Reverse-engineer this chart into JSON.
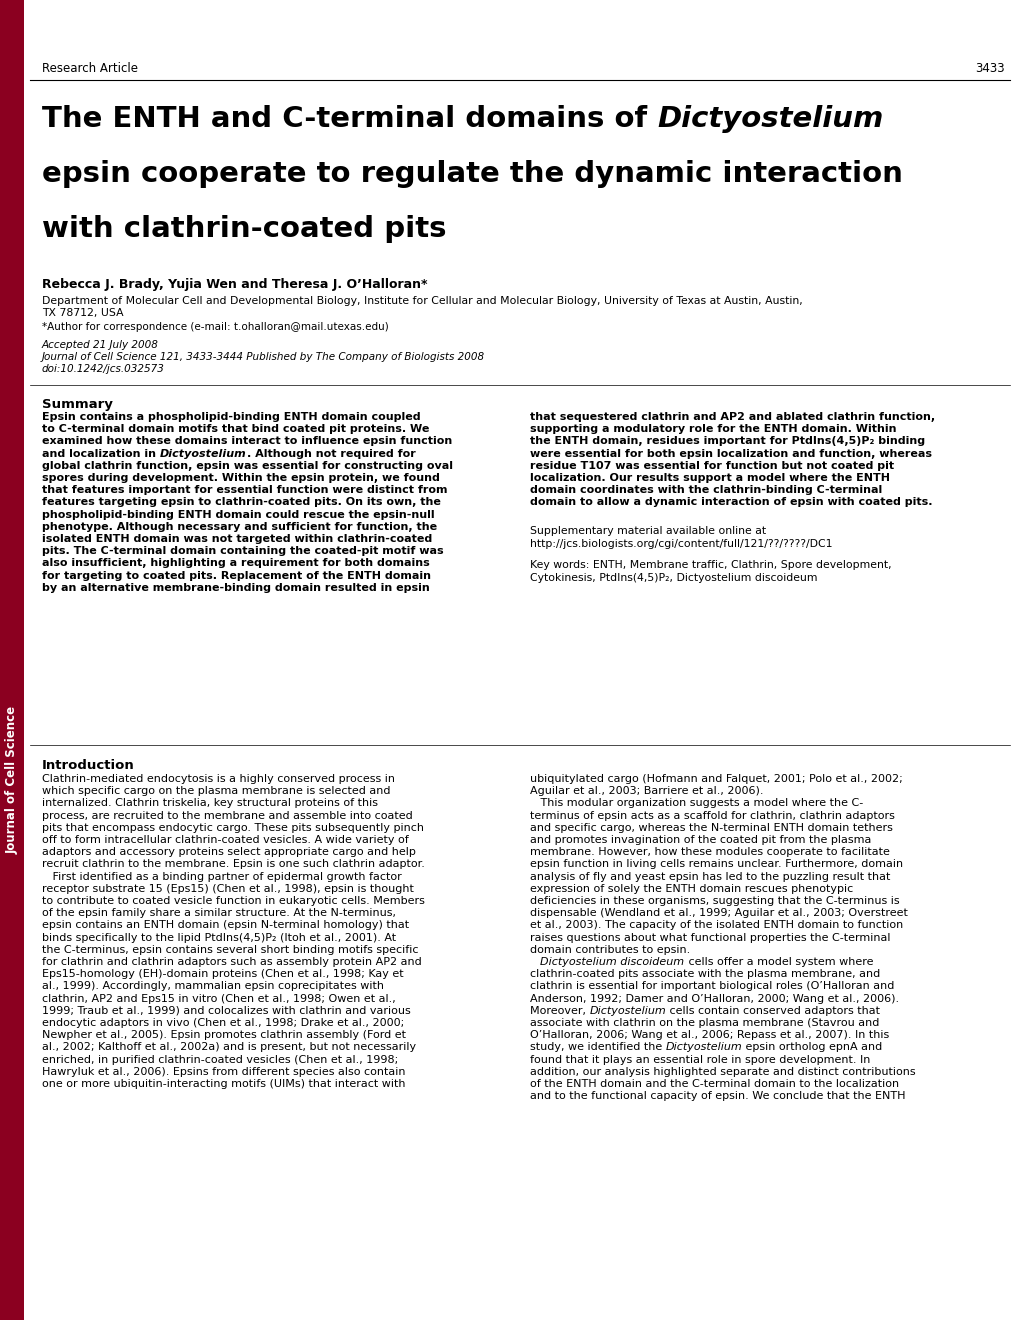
{
  "bg_color": "#ffffff",
  "sidebar_color": "#8B0020",
  "page_number": "3433",
  "section_label": "Research Article",
  "journal_sidebar_text": "Journal of Cell Science",
  "authors": "Rebecca J. Brady, Yujia Wen and Theresa J. O’Halloran*",
  "affiliation_line1": "Department of Molecular Cell and Developmental Biology, Institute for Cellular and Molecular Biology, University of Texas at Austin, Austin,",
  "affiliation_line2": "TX 78712, USA",
  "correspondence": "*Author for correspondence (e-mail: t.ohalloran@mail.utexas.edu)",
  "accepted": "Accepted 21 July 2008",
  "journal_ref": "Journal of Cell Science 121, 3433-3444 Published by The Company of Biologists 2008",
  "doi": "doi:10.1242/jcs.032573",
  "summary_heading": "Summary",
  "suppl_text": "Supplementary material available online at",
  "suppl_url": "http://jcs.biologists.org/cgi/content/full/121/??/????/DC1",
  "keywords": "Key words: ENTH, Membrane traffic, Clathrin, Spore development,\nCytokinesis, PtdIns(4,5)P₂, Dictyostelium discoideum",
  "intro_heading": "Introduction",
  "summary_col1_lines": [
    "Epsin contains a phospholipid-binding ENTH domain coupled",
    "to C-terminal domain motifs that bind coated pit proteins. We",
    "examined how these domains interact to influence epsin function",
    "and localization in |Dictyostelium|. Although not required for",
    "global clathrin function, epsin was essential for constructing oval",
    "spores during development. Within the epsin protein, we found",
    "that features important for essential function were distinct from",
    "features targeting epsin to clathrin-coated pits. On its own, the",
    "phospholipid-binding ENTH domain could rescue the epsin-null",
    "phenotype. Although necessary and sufficient for function, the",
    "isolated ENTH domain was not targeted within clathrin-coated",
    "pits. The C-terminal domain containing the coated-pit motif was",
    "also insufficient, highlighting a requirement for both domains",
    "for targeting to coated pits. Replacement of the ENTH domain",
    "by an alternative membrane-binding domain resulted in epsin"
  ],
  "summary_col2_lines": [
    "that sequestered clathrin and AP2 and ablated clathrin function,",
    "supporting a modulatory role for the ENTH domain. Within",
    "the ENTH domain, residues important for PtdIns(4,5)P₂ binding",
    "were essential for both epsin localization and function, whereas",
    "residue T107 was essential for function but not coated pit",
    "localization. Our results support a model where the ENTH",
    "domain coordinates with the clathrin-binding C-terminal",
    "domain to allow a dynamic interaction of epsin with coated pits."
  ],
  "intro_col1_lines": [
    "Clathrin-mediated endocytosis is a highly conserved process in",
    "which specific cargo on the plasma membrane is selected and",
    "internalized. Clathrin triskelia, key structural proteins of this",
    "process, are recruited to the membrane and assemble into coated",
    "pits that encompass endocytic cargo. These pits subsequently pinch",
    "off to form intracellular clathrin-coated vesicles. A wide variety of",
    "adaptors and accessory proteins select appropriate cargo and help",
    "recruit clathrin to the membrane. Epsin is one such clathrin adaptor.",
    "   First identified as a binding partner of epidermal growth factor",
    "receptor substrate 15 (Eps15) (Chen et al., 1998), epsin is thought",
    "to contribute to coated vesicle function in eukaryotic cells. Members",
    "of the epsin family share a similar structure. At the N-terminus,",
    "epsin contains an ENTH domain (epsin N-terminal homology) that",
    "binds specifically to the lipid PtdIns(4,5)P₂ (Itoh et al., 2001). At",
    "the C-terminus, epsin contains several short binding motifs specific",
    "for clathrin and clathrin adaptors such as assembly protein AP2 and",
    "Eps15-homology (EH)-domain proteins (Chen et al., 1998; Kay et",
    "al., 1999). Accordingly, mammalian epsin coprecipitates with",
    "clathrin, AP2 and Eps15 in vitro (Chen et al., 1998; Owen et al.,",
    "1999; Traub et al., 1999) and colocalizes with clathrin and various",
    "endocytic adaptors in vivo (Chen et al., 1998; Drake et al., 2000;",
    "Newpher et al., 2005). Epsin promotes clathrin assembly (Ford et",
    "al., 2002; Kalthoff et al., 2002a) and is present, but not necessarily",
    "enriched, in purified clathrin-coated vesicles (Chen et al., 1998;",
    "Hawryluk et al., 2006). Epsins from different species also contain",
    "one or more ubiquitin-interacting motifs (UIMs) that interact with"
  ],
  "intro_col2_lines": [
    "ubiquitylated cargo (Hofmann and Falquet, 2001; Polo et al., 2002;",
    "Aguilar et al., 2003; Barriere et al., 2006).",
    "   This modular organization suggests a model where the C-",
    "terminus of epsin acts as a scaffold for clathrin, clathrin adaptors",
    "and specific cargo, whereas the N-terminal ENTH domain tethers",
    "and promotes invagination of the coated pit from the plasma",
    "membrane. However, how these modules cooperate to facilitate",
    "epsin function in living cells remains unclear. Furthermore, domain",
    "analysis of fly and yeast epsin has led to the puzzling result that",
    "expression of solely the ENTH domain rescues phenotypic",
    "deficiencies in these organisms, suggesting that the C-terminus is",
    "dispensable (Wendland et al., 1999; Aguilar et al., 2003; Overstreet",
    "et al., 2003). The capacity of the isolated ENTH domain to function",
    "raises questions about what functional properties the C-terminal",
    "domain contributes to epsin.",
    "   |Dictyostelium discoideum| cells offer a model system where",
    "clathrin-coated pits associate with the plasma membrane, and",
    "clathrin is essential for important biological roles (O’Halloran and",
    "Anderson, 1992; Damer and O’Halloran, 2000; Wang et al., 2006).",
    "Moreover, |Dictyostelium| cells contain conserved adaptors that",
    "associate with clathrin on the plasma membrane (Stavrou and",
    "O’Halloran, 2006; Wang et al., 2006; Repass et al., 2007). In this",
    "study, we identified the |Dictyostelium| epsin ortholog epnA and",
    "found that it plays an essential role in spore development. In",
    "addition, our analysis highlighted separate and distinct contributions",
    "of the ENTH domain and the C-terminal domain to the localization",
    "and to the functional capacity of epsin. We conclude that the ENTH"
  ]
}
